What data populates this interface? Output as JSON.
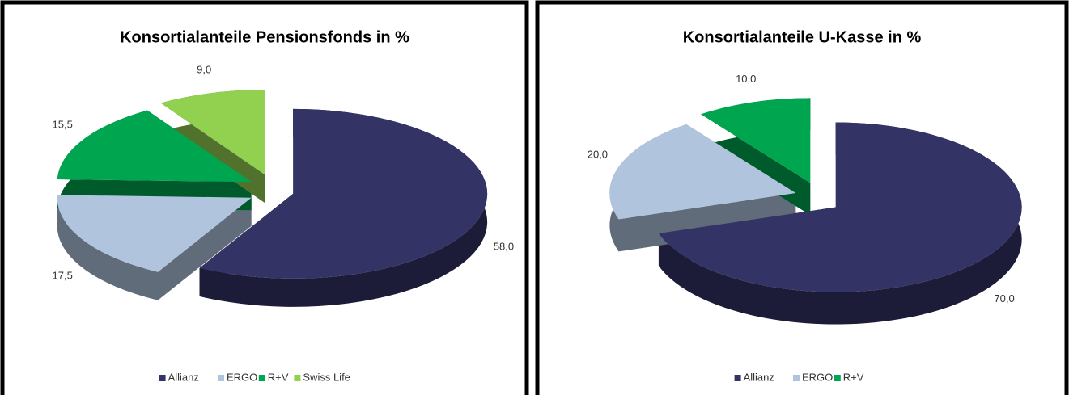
{
  "chart_data": [
    {
      "type": "pie",
      "title": "Konsortialanteile Pensionsfonds in %",
      "categories": [
        "Allianz",
        "ERGO",
        "R+V",
        "Swiss Life"
      ],
      "values": [
        58.0,
        17.5,
        15.5,
        9.0
      ],
      "value_labels": [
        "58,0",
        "17,5",
        "15,5",
        "9,0"
      ],
      "colors": [
        "#333366",
        "#b0c4de",
        "#00a550",
        "#92d050"
      ],
      "legend": "bottom"
    },
    {
      "type": "pie",
      "title": "Konsortialanteile U-Kasse in %",
      "categories": [
        "Allianz",
        "ERGO",
        "R+V"
      ],
      "values": [
        70.0,
        20.0,
        10.0
      ],
      "value_labels": [
        "70,0",
        "20,0",
        "10,0"
      ],
      "colors": [
        "#333366",
        "#b0c4de",
        "#00a550"
      ],
      "legend": "bottom"
    }
  ]
}
